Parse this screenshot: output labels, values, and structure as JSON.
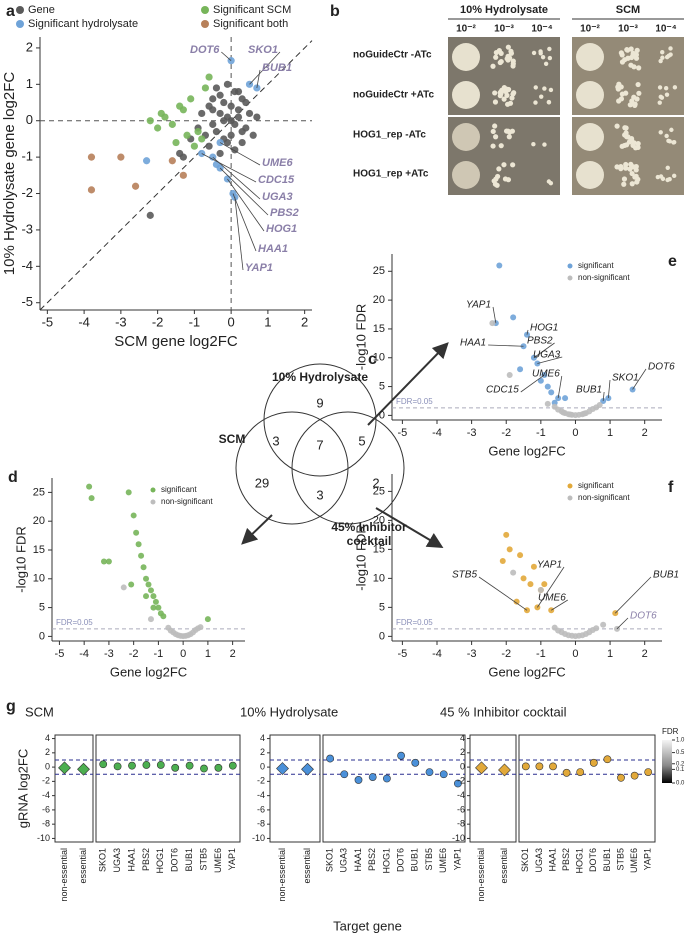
{
  "panel_labels": [
    "a",
    "b",
    "c",
    "d",
    "e",
    "f",
    "g"
  ],
  "chart_data": [
    {
      "type": "scatter",
      "x_label": "SCM gene log2FC",
      "y_label": "10% Hydrolysate gene log2FC",
      "xlim": [
        -5.2,
        2.2
      ],
      "ylim": [
        -5.2,
        2.3
      ],
      "xticks": [
        -5,
        -4,
        -3,
        -2,
        -1,
        0,
        1,
        2
      ],
      "yticks": [
        -5,
        -4,
        -3,
        -2,
        -1,
        0,
        1,
        2
      ],
      "zero_lines": true,
      "diagonal": true,
      "series": [
        {
          "name": "Gene",
          "color": "#5a5a5a",
          "x": [
            -0.5,
            -0.3,
            -0.2,
            -0.1,
            0,
            0.1,
            0.2,
            0.3,
            0.4,
            -0.4,
            -0.6,
            -0.2,
            0.1,
            0.3,
            -0.3,
            0,
            0.2,
            -0.1,
            -0.5,
            0.5,
            -0.7,
            -0.8,
            0.6,
            -0.4,
            0.1,
            -0.2,
            0.4,
            -0.9,
            -0.3,
            0,
            0.2,
            -0.6,
            -1.1,
            -1.3,
            -0.1,
            0.3,
            -0.5,
            -1.4,
            0.7,
            -2.2
          ],
          "values": [
            0.3,
            0.2,
            0.5,
            0.1,
            0,
            -0.1,
            0.3,
            0.6,
            -0.2,
            -0.3,
            0.4,
            -0.5,
            0.8,
            -0.3,
            0.7,
            0.4,
            0.1,
            -0.6,
            -0.1,
            0.2,
            -0.4,
            0.2,
            -0.4,
            0.9,
            -0.8,
            0.0,
            0.5,
            -0.2,
            -0.9,
            -0.4,
            0.8,
            -0.7,
            -0.5,
            -1.0,
            1.0,
            -0.6,
            0.6,
            -0.9,
            0.1,
            -2.6
          ]
        },
        {
          "name": "Significant hydrolysate",
          "color": "#6fa3d8",
          "x": [
            0,
            0.5,
            0.7,
            -0.3,
            -0.8,
            -0.5,
            -0.3,
            -0.1,
            0.05,
            0.1,
            -2.3,
            -0.4
          ],
          "values": [
            1.65,
            1.0,
            0.9,
            -0.6,
            -0.9,
            -1.0,
            -1.3,
            -1.6,
            -2.0,
            -2.1,
            -1.1,
            -1.2
          ],
          "point_labels": [
            "DOT6",
            "SKO1",
            "BUB1",
            "UME6",
            "CDC15",
            "UGA3",
            "PBS2",
            "HOG1",
            "HAA1",
            "YAP1",
            null,
            null
          ]
        },
        {
          "name": "Significant SCM",
          "color": "#77b55a",
          "x": [
            -2.2,
            -1.9,
            -1.6,
            -1.3,
            -1.1,
            -0.9,
            -1.5,
            -1.2,
            -2.0,
            -0.7,
            -1.8,
            -1.0,
            -0.6,
            -1.4,
            -0.8
          ],
          "values": [
            0.0,
            0.2,
            -0.1,
            0.3,
            0.6,
            -0.3,
            -0.6,
            -0.4,
            -0.2,
            0.9,
            0.1,
            -0.7,
            1.2,
            0.4,
            -0.5
          ]
        },
        {
          "name": "Significant both",
          "color": "#b7805a",
          "x": [
            -3.8,
            -3.0,
            -2.6,
            -3.8,
            -1.6,
            -1.3
          ],
          "values": [
            -1.0,
            -1.0,
            -1.8,
            -1.9,
            -1.1,
            -1.5
          ]
        }
      ]
    },
    {
      "type": "scatter",
      "x_label": "Gene log2FC",
      "y_label": "-log10 FDR",
      "xlim": [
        -5.3,
        2.5
      ],
      "ylim": [
        -0.8,
        27.5
      ],
      "xticks": [
        -5,
        -4,
        -3,
        -2,
        -1,
        0,
        1,
        2
      ],
      "yticks": [
        0,
        5,
        10,
        15,
        20,
        25
      ],
      "threshold": {
        "value": 1.3,
        "label": "FDR=0.05"
      },
      "series": [
        {
          "name": "significant",
          "color": "#77b55a",
          "x": [
            -3.8,
            -3.7,
            -2.2,
            -3.2,
            -3.0,
            -2.0,
            -1.9,
            -1.8,
            -1.7,
            -1.6,
            -1.5,
            -1.4,
            -1.3,
            -1.2,
            -1.1,
            -1.0,
            -0.9,
            -0.8,
            -2.1,
            1.0,
            -1.5,
            -1.2
          ],
          "values": [
            26,
            24,
            25,
            13,
            13,
            21,
            18,
            16,
            14,
            12,
            10,
            9,
            8,
            7,
            6,
            5,
            4,
            3.5,
            9,
            3,
            7,
            5
          ]
        },
        {
          "name": "non-significant",
          "color": "#bdbdbd",
          "x": [
            -0.6,
            -0.5,
            -0.4,
            -0.3,
            -0.2,
            -0.1,
            0,
            0.1,
            0.2,
            0.3,
            0.4,
            0.5,
            0.6,
            -2.4,
            -1.3,
            0.7
          ],
          "values": [
            1.5,
            1.0,
            0.7,
            0.4,
            0.2,
            0.1,
            0.05,
            0.1,
            0.2,
            0.4,
            0.7,
            1.1,
            1.4,
            8.5,
            3,
            1.6
          ]
        }
      ]
    },
    {
      "type": "scatter",
      "x_label": "Gene log2FC",
      "y_label": "-log10 FDR",
      "xlim": [
        -5.3,
        2.5
      ],
      "ylim": [
        -0.8,
        28
      ],
      "xticks": [
        -5,
        -4,
        -3,
        -2,
        -1,
        0,
        1,
        2
      ],
      "yticks": [
        0,
        5,
        10,
        15,
        20,
        25
      ],
      "threshold": {
        "value": 1.3,
        "label": "FDR=0.05"
      },
      "series": [
        {
          "name": "significant",
          "color": "#6fa3d8",
          "x": [
            -2.2,
            -2.3,
            -1.8,
            -1.5,
            -1.4,
            -1.2,
            -1.1,
            -0.9,
            -1.6,
            -0.8,
            -0.5,
            -0.3,
            0.8,
            0.95,
            1.65,
            -1.0,
            -0.7,
            -0.6
          ],
          "values": [
            26,
            16,
            17,
            12,
            14,
            10,
            9,
            7,
            8,
            5,
            3,
            3,
            2.5,
            3,
            4.5,
            6,
            4,
            2.2
          ],
          "point_labels": [
            null,
            "YAP1",
            null,
            "HAA1",
            "HOG1",
            "PBS2",
            "UGA3",
            "CDC15",
            null,
            null,
            "UME6",
            null,
            "BUB1",
            "SKO1",
            "DOT6",
            null,
            null,
            null
          ]
        },
        {
          "name": "non-significant",
          "color": "#bdbdbd",
          "x": [
            -0.6,
            -0.5,
            -0.4,
            -0.3,
            -0.2,
            -0.1,
            0,
            0.1,
            0.2,
            0.3,
            0.4,
            0.5,
            0.6,
            -0.8,
            -2.4,
            -1.9,
            0.7,
            -0.35,
            0.25,
            -0.15
          ],
          "values": [
            1.5,
            1.0,
            0.7,
            0.4,
            0.2,
            0.1,
            0.05,
            0.1,
            0.2,
            0.4,
            0.7,
            1.1,
            1.4,
            2.0,
            16,
            7,
            1.8,
            0.5,
            0.3,
            0.15
          ]
        }
      ]
    },
    {
      "type": "scatter",
      "x_label": "Gene log2FC",
      "y_label": "-log10 FDR",
      "xlim": [
        -5.3,
        2.5
      ],
      "ylim": [
        -0.8,
        28
      ],
      "xticks": [
        -5,
        -4,
        -3,
        -2,
        -1,
        0,
        1,
        2
      ],
      "yticks": [
        0,
        5,
        10,
        15,
        20,
        25
      ],
      "threshold": {
        "value": 1.3,
        "label": "FDR=0.05"
      },
      "series": [
        {
          "name": "significant",
          "color": "#e2a93a",
          "x": [
            -2.0,
            -1.9,
            -2.1,
            -1.6,
            -1.2,
            -1.5,
            -1.3,
            -1.0,
            -1.7,
            -1.1,
            -0.7,
            1.15,
            -1.4,
            -0.9
          ],
          "values": [
            17.5,
            15,
            13,
            14,
            12,
            10,
            9,
            8,
            6,
            5,
            4.5,
            4,
            4.5,
            9
          ],
          "point_labels": [
            null,
            null,
            null,
            null,
            null,
            null,
            null,
            null,
            null,
            "YAP1",
            "UME6",
            "BUB1",
            "STB5",
            null
          ]
        },
        {
          "name": "non-significant",
          "color": "#bdbdbd",
          "x": [
            -0.6,
            -0.5,
            -0.4,
            -0.3,
            -0.2,
            -0.1,
            0,
            0.1,
            0.2,
            0.3,
            0.4,
            0.5,
            0.6,
            1.2,
            -1.0,
            -1.8,
            0.8
          ],
          "values": [
            1.5,
            1.0,
            0.7,
            0.4,
            0.2,
            0.1,
            0.05,
            0.1,
            0.2,
            0.4,
            0.7,
            1.1,
            1.4,
            1.3,
            8,
            11,
            2
          ],
          "point_labels": [
            null,
            null,
            null,
            null,
            null,
            null,
            null,
            null,
            null,
            null,
            null,
            null,
            null,
            "DOT6",
            null,
            null,
            null
          ]
        }
      ]
    },
    {
      "type": "strip",
      "title": "SCM",
      "y_label": "gRNA log2FC",
      "color": "#4caf50",
      "categories": [
        "non-essential",
        "essential",
        "SKO1",
        "UGA3",
        "HAA1",
        "PBS2",
        "HOG1",
        "DOT6",
        "BUB1",
        "STB5",
        "UME6",
        "YAP1"
      ],
      "values": [
        -0.1,
        -0.3,
        0.4,
        0.1,
        0.2,
        0.3,
        0.3,
        -0.1,
        0.2,
        -0.2,
        -0.1,
        0.2
      ],
      "ylim": [
        -10.5,
        4.5
      ],
      "yticks": [
        -10,
        -8,
        -6,
        -4,
        -2,
        0,
        2,
        4
      ],
      "reference_lines": [
        -1,
        1
      ]
    },
    {
      "type": "strip",
      "title": "10% Hydrolysate",
      "x_label": "Target gene",
      "color": "#4a90d9",
      "categories": [
        "non-essential",
        "essential",
        "SKO1",
        "UGA3",
        "HAA1",
        "PBS2",
        "HOG1",
        "DOT6",
        "BUB1",
        "STB5",
        "UME6",
        "YAP1"
      ],
      "values": [
        -0.2,
        -0.3,
        1.2,
        -1.0,
        -1.8,
        -1.4,
        -1.6,
        1.6,
        0.6,
        -0.7,
        -1.0,
        -2.3
      ],
      "ylim": [
        -10.5,
        4.5
      ],
      "yticks": [
        -10,
        -8,
        -6,
        -4,
        -2,
        0,
        2,
        4
      ],
      "reference_lines": [
        -1,
        1
      ]
    },
    {
      "type": "strip",
      "title": "45 % Inhibitor cocktail",
      "color": "#e2a93a",
      "categories": [
        "non-essential",
        "essential",
        "SKO1",
        "UGA3",
        "HAA1",
        "PBS2",
        "HOG1",
        "DOT6",
        "BUB1",
        "STB5",
        "UME6",
        "YAP1"
      ],
      "values": [
        -0.1,
        -0.4,
        0.1,
        0.1,
        0.1,
        -0.8,
        -0.7,
        0.6,
        1.1,
        -1.5,
        -1.2,
        -0.7
      ],
      "ylim": [
        -10.5,
        4.5
      ],
      "yticks": [
        -10,
        -8,
        -6,
        -4,
        -2,
        0,
        2,
        4
      ],
      "reference_lines": [
        -1,
        1
      ]
    }
  ],
  "spot_assay": {
    "conditions": [
      "10% Hydrolysate",
      "SCM"
    ],
    "dilutions": [
      "10⁻²",
      "10⁻³",
      "10⁻⁴"
    ],
    "rows": [
      "noGuideCtr  -ATc",
      "noGuideCtr  +ATc",
      "HOG1_rep -ATc",
      "HOG1_rep +ATc"
    ]
  },
  "venn": {
    "sets": [
      "10% Hydrolysate",
      "SCM",
      "45% Inhibitor cocktail"
    ],
    "regions": [
      9,
      3,
      7,
      5,
      29,
      3,
      2
    ]
  },
  "fdr_legend": {
    "title": "FDR",
    "ticks": [
      {
        "value": 1,
        "label": "1.0"
      },
      0.5,
      0.2,
      0.1,
      {
        "value": 0,
        "label": "0.0"
      }
    ]
  }
}
